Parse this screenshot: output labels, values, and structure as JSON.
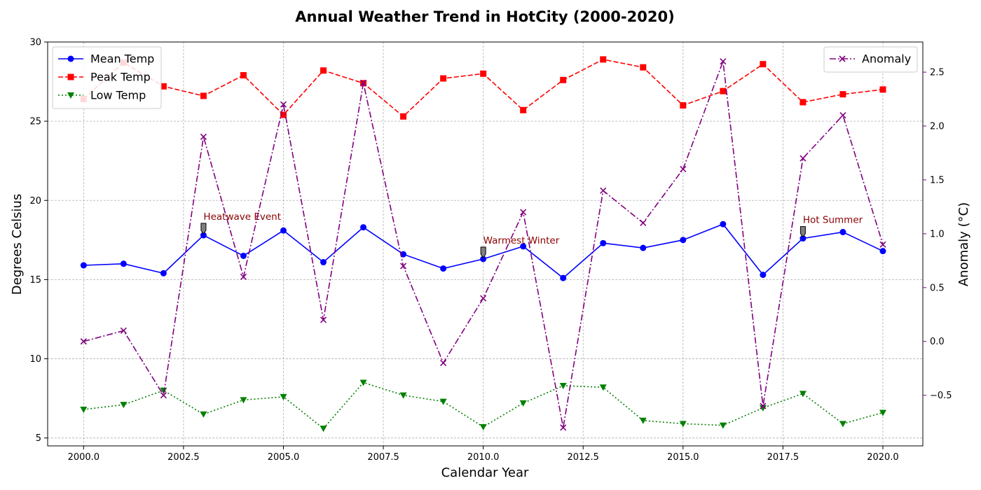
{
  "chart_data": {
    "type": "line",
    "title": "Annual Weather Trend in HotCity (2000-2020)",
    "xlabel": "Calendar Year",
    "ylabel": "Degrees Celsius",
    "y2label": "Anomaly (°C)",
    "xlim": [
      1999.1,
      2021.0
    ],
    "ylim": [
      4.5,
      30.0
    ],
    "y2lim": [
      -0.97,
      2.78
    ],
    "x_ticks": [
      2000,
      2002.5,
      2005,
      2007.5,
      2010,
      2012.5,
      2015,
      2017.5,
      2020
    ],
    "x_tick_labels": [
      "2000.0",
      "2002.5",
      "2005.0",
      "2007.5",
      "2010.0",
      "2012.5",
      "2015.0",
      "2017.5",
      "2020.0"
    ],
    "y_ticks": [
      5,
      10,
      15,
      20,
      25,
      30
    ],
    "y_tick_labels": [
      "5",
      "10",
      "15",
      "20",
      "25",
      "30"
    ],
    "y2_ticks": [
      -0.5,
      0.0,
      0.5,
      1.0,
      1.5,
      2.0,
      2.5
    ],
    "y2_tick_labels": [
      "−0.5",
      "0.0",
      "0.5",
      "1.0",
      "1.5",
      "2.0",
      "2.5"
    ],
    "grid": true,
    "x": [
      2000,
      2001,
      2002,
      2003,
      2004,
      2005,
      2006,
      2007,
      2008,
      2009,
      2010,
      2011,
      2012,
      2013,
      2014,
      2015,
      2016,
      2017,
      2018,
      2019,
      2020
    ],
    "series": [
      {
        "name": "Mean Temp",
        "axis": "left",
        "color": "#0000ff",
        "linestyle": "solid",
        "marker": "circle",
        "values": [
          15.9,
          16.0,
          15.4,
          17.8,
          16.5,
          18.1,
          16.1,
          18.3,
          16.6,
          15.7,
          16.3,
          17.1,
          15.1,
          17.3,
          17.0,
          17.5,
          18.5,
          15.3,
          17.6,
          18.0,
          16.8
        ]
      },
      {
        "name": "Peak Temp",
        "axis": "left",
        "color": "#ff0000",
        "linestyle": "dashed",
        "marker": "square",
        "values": [
          26.4,
          28.7,
          27.2,
          26.6,
          27.9,
          25.4,
          28.2,
          27.4,
          25.3,
          27.7,
          28.0,
          25.7,
          27.6,
          28.9,
          28.4,
          26.0,
          26.9,
          28.6,
          26.2,
          26.7,
          27.0
        ]
      },
      {
        "name": "Low Temp",
        "axis": "left",
        "color": "#008000",
        "linestyle": "dotted",
        "marker": "triangle-down",
        "values": [
          6.8,
          7.1,
          8.0,
          6.5,
          7.4,
          7.6,
          5.6,
          8.5,
          7.7,
          7.3,
          5.7,
          7.2,
          8.3,
          8.2,
          6.1,
          5.9,
          5.8,
          6.9,
          7.8,
          5.9,
          6.6
        ]
      },
      {
        "name": "Anomaly",
        "axis": "right",
        "color": "#800080",
        "linestyle": "dashdot",
        "marker": "x",
        "values": [
          0.0,
          0.1,
          -0.5,
          1.9,
          0.6,
          2.2,
          0.2,
          2.4,
          0.7,
          -0.2,
          0.4,
          1.2,
          -0.8,
          1.4,
          1.1,
          1.6,
          2.6,
          -0.6,
          1.7,
          2.1,
          0.9
        ]
      }
    ],
    "legend_left": {
      "placement": "top-left",
      "entries": [
        "Mean Temp",
        "Peak Temp",
        "Low Temp"
      ]
    },
    "legend_right": {
      "placement": "top-right",
      "entries": [
        "Anomaly"
      ]
    },
    "annotations": [
      {
        "text": "Heatwave Event",
        "x": 2003,
        "y": 17.8
      },
      {
        "text": "Warmest Winter",
        "x": 2010,
        "y": 16.3
      },
      {
        "text": "Hot Summer",
        "x": 2018,
        "y": 17.6
      }
    ],
    "annotation_color": "#8b0000"
  }
}
